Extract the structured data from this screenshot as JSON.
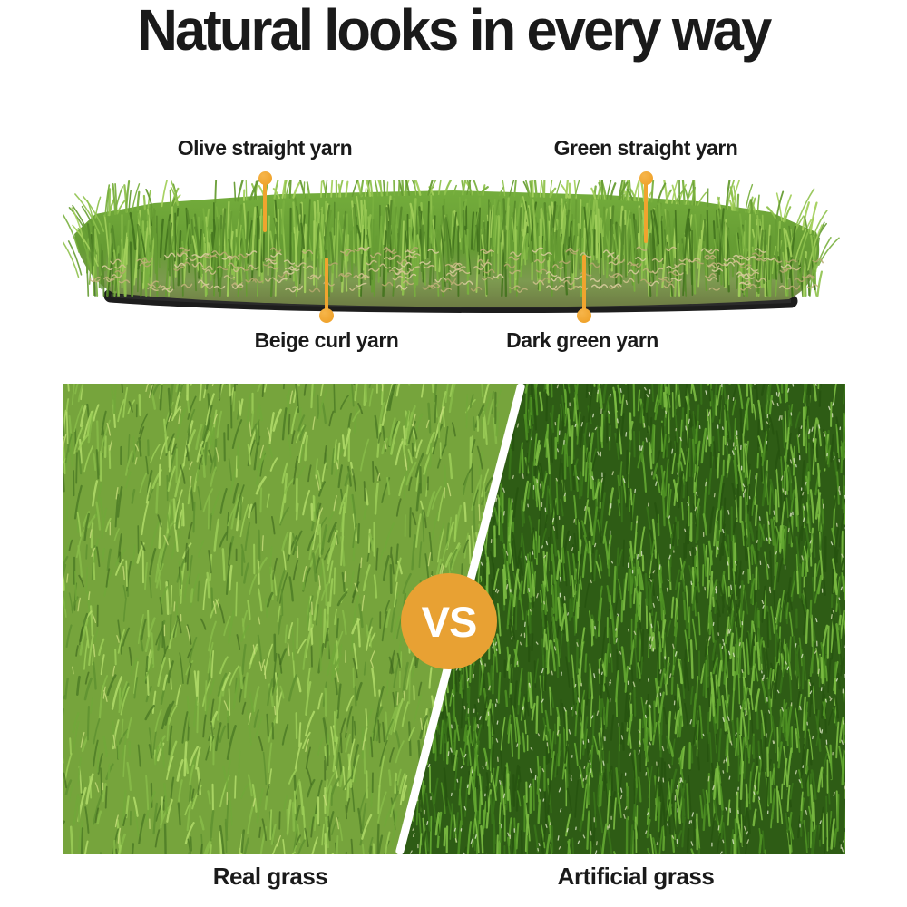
{
  "title": "Natural looks in every way",
  "diagram": {
    "callouts": [
      {
        "id": "olive",
        "label": "Olive straight yarn",
        "position": "top-left"
      },
      {
        "id": "green",
        "label": "Green straight yarn",
        "position": "top-right"
      },
      {
        "id": "beige",
        "label": "Beige curl yarn",
        "position": "bottom-left"
      },
      {
        "id": "dark-green",
        "label": "Dark green yarn",
        "position": "bottom-right"
      }
    ]
  },
  "comparison": {
    "vs_label": "VS",
    "left": {
      "label": "Real grass"
    },
    "right": {
      "label": "Artificial grass"
    }
  },
  "colors": {
    "heading_text": "#1A1A1A",
    "accent_orange": "#F0A42E",
    "vs_badge": "#E8A133",
    "turf_green": "#6FA839",
    "beige_yarn": "#CFC18D",
    "backing_black": "#1D1D1D",
    "real_grass_base": "#76A43C",
    "artificial_grass_base": "#2E5C15",
    "divider_white": "#FFFFFF"
  }
}
